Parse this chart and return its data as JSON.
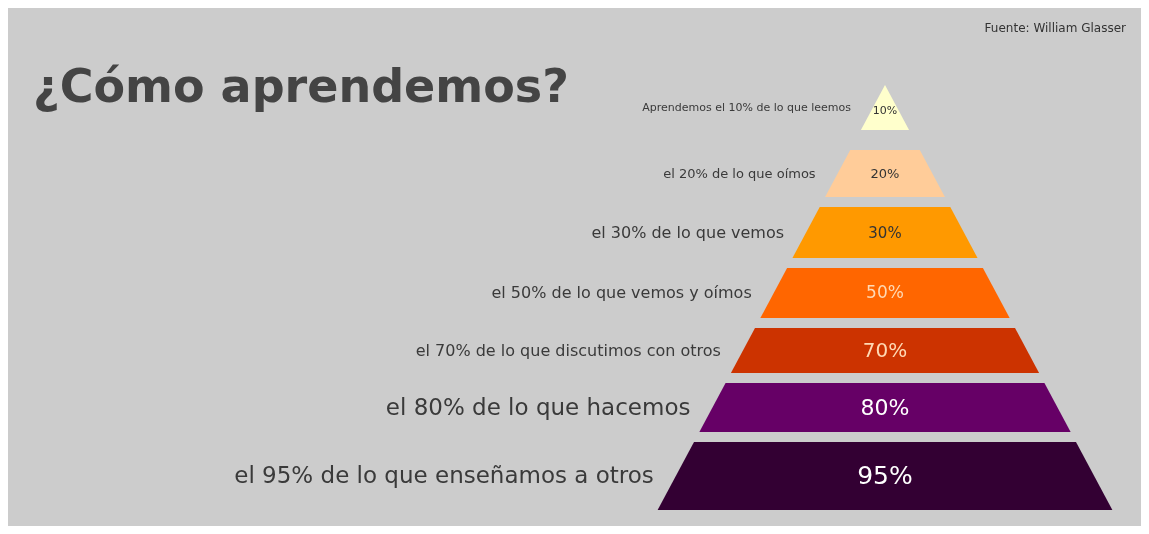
{
  "chart_data": {
    "type": "other",
    "title": "¿Cómo aprendemos?",
    "annotations": [
      "Fuente: William Glasser"
    ],
    "categories": [
      "Aprendemos el 10% de lo que leemos",
      "el 20% de lo que oímos",
      "el 30% de lo que vemos",
      "el 50% de lo que vemos y oímos",
      "el 70% de lo que discutimos con otros",
      "el 80% de lo que hacemos",
      "el 95% de lo que enseñamos a otros"
    ],
    "values": [
      10,
      20,
      30,
      50,
      70,
      80,
      95
    ],
    "value_labels": [
      "10%",
      "20%",
      "30%",
      "50%",
      "70%",
      "80%",
      "95%"
    ],
    "colors": [
      "#ffffcc",
      "#ffcc99",
      "#ff9900",
      "#ff6600",
      "#cc3300",
      "#660066",
      "#330033"
    ]
  }
}
